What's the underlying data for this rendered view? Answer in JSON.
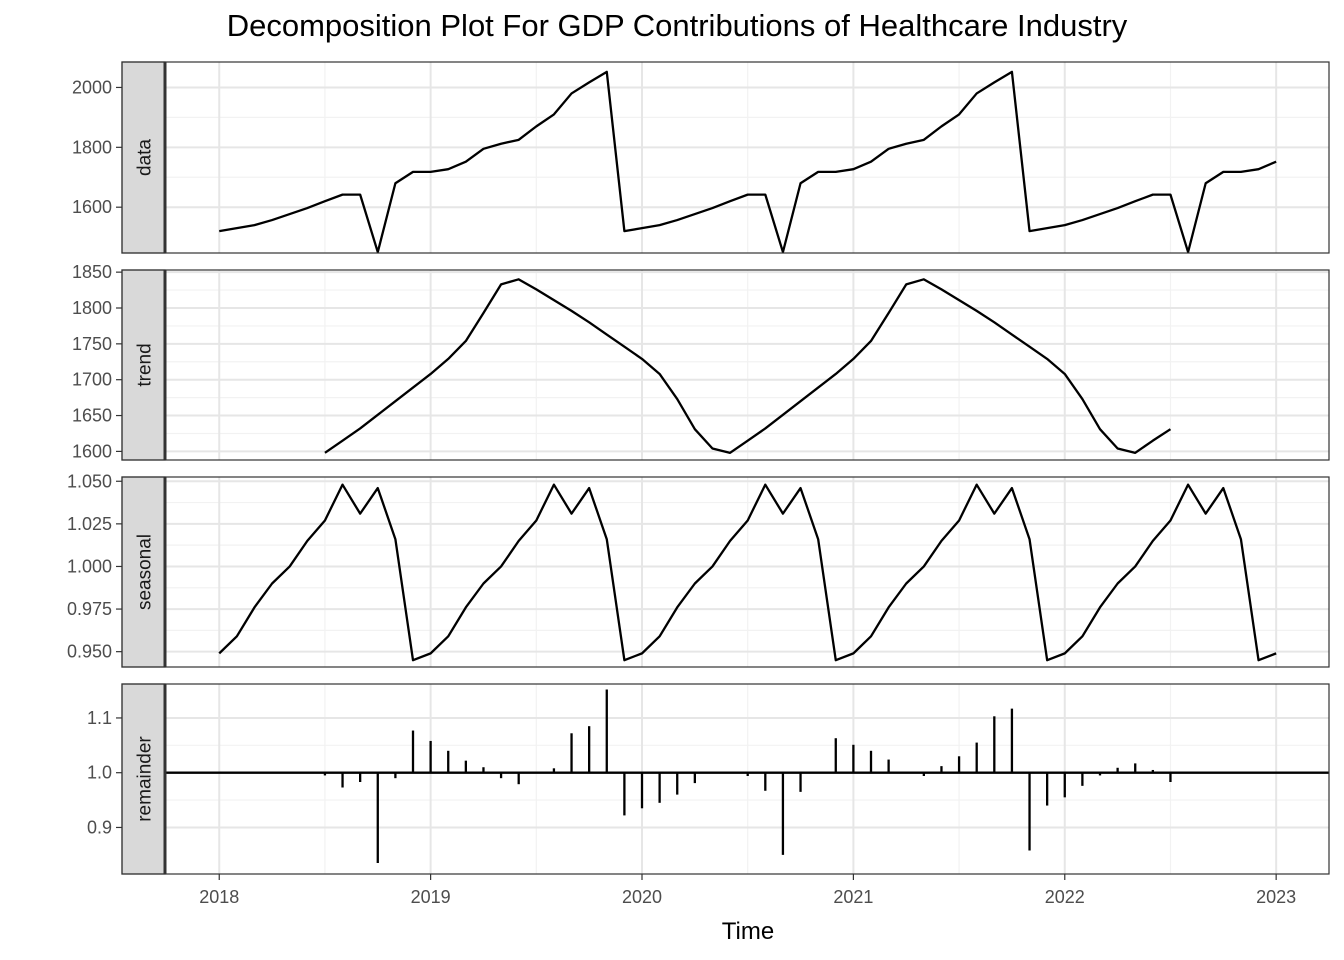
{
  "chart_data": {
    "type": "line",
    "title": "Decomposition Plot For GDP Contributions of Healthcare Industry",
    "xlabel": "Time",
    "x_ticks": [
      "2018",
      "2019",
      "2020",
      "2021",
      "2022",
      "2023"
    ],
    "xlim": [
      2017.54,
      2023.25
    ],
    "grid": true,
    "panels": [
      {
        "name": "data",
        "kind": "line",
        "ylim": [
          1447,
          2085
        ],
        "y_ticks": [
          1600,
          1800,
          2000
        ],
        "y_tick_labels": [
          "1600",
          "1800",
          "2000"
        ],
        "x_start": 2018.0,
        "x_step": 0.0833333,
        "values": [
          1520,
          1530,
          1540,
          1557,
          1577,
          1597,
          1620,
          1642,
          1642,
          1450,
          1680,
          1718,
          1718,
          1727,
          1752,
          1795,
          1812,
          1825,
          1870,
          1910,
          1980,
          2017,
          2052,
          1520,
          1530,
          1540,
          1557,
          1577,
          1597,
          1620,
          1642,
          1642,
          1450,
          1680,
          1718,
          1718,
          1727,
          1752,
          1795,
          1812,
          1825,
          1870,
          1910,
          1980,
          2017,
          2052,
          1520,
          1530,
          1540,
          1557,
          1577,
          1597,
          1620,
          1642,
          1642,
          1450,
          1680,
          1718,
          1718,
          1727,
          1752
        ]
      },
      {
        "name": "trend",
        "kind": "line",
        "ylim": [
          1588,
          1853
        ],
        "y_ticks": [
          1600,
          1650,
          1700,
          1750,
          1800,
          1850
        ],
        "y_tick_labels": [
          "1600",
          "1650",
          "1700",
          "1750",
          "1800",
          "1850"
        ],
        "x_start": 2018.5,
        "x_step": 0.0833333,
        "values": [
          1598,
          1615,
          1632,
          1651,
          1670,
          1689,
          1708,
          1729,
          1754,
          1793,
          1833,
          1840,
          1826,
          1811,
          1796,
          1780,
          1763,
          1746,
          1729,
          1708,
          1673,
          1631,
          1604,
          1598,
          1615,
          1632,
          1651,
          1670,
          1689,
          1708,
          1729,
          1754,
          1793,
          1833,
          1840,
          1826,
          1811,
          1796,
          1780,
          1763,
          1746,
          1729,
          1708,
          1673,
          1631,
          1604,
          1598,
          1615,
          1631
        ]
      },
      {
        "name": "seasonal",
        "kind": "line",
        "ylim": [
          0.941,
          1.0525
        ],
        "y_ticks": [
          0.95,
          0.975,
          1.0,
          1.025,
          1.05
        ],
        "y_tick_labels": [
          "0.950",
          "0.975",
          "1.000",
          "1.025",
          "1.050"
        ],
        "x_start": 2018.0,
        "x_step": 0.0833333,
        "values": [
          0.949,
          0.959,
          0.976,
          0.99,
          1.0,
          1.015,
          1.027,
          1.048,
          1.031,
          1.046,
          1.016,
          0.945,
          0.949,
          0.959,
          0.976,
          0.99,
          1.0,
          1.015,
          1.027,
          1.048,
          1.031,
          1.046,
          1.016,
          0.945,
          0.949,
          0.959,
          0.976,
          0.99,
          1.0,
          1.015,
          1.027,
          1.048,
          1.031,
          1.046,
          1.016,
          0.945,
          0.949,
          0.959,
          0.976,
          0.99,
          1.0,
          1.015,
          1.027,
          1.048,
          1.031,
          1.046,
          1.016,
          0.945,
          0.949,
          0.959,
          0.976,
          0.99,
          1.0,
          1.015,
          1.027,
          1.048,
          1.031,
          1.046,
          1.016,
          0.945,
          0.949
        ]
      },
      {
        "name": "remainder",
        "kind": "bar",
        "ylim": [
          0.815,
          1.162
        ],
        "y_ticks": [
          0.9,
          1.0,
          1.1
        ],
        "y_tick_labels": [
          "0.9",
          "1.0",
          "1.1"
        ],
        "baseline": 1.0,
        "x_start": 2018.5,
        "x_step": 0.0833333,
        "values": [
          0.995,
          0.973,
          0.983,
          0.835,
          0.99,
          1.077,
          1.058,
          1.04,
          1.022,
          1.01,
          0.99,
          0.979,
          1.0,
          1.008,
          1.072,
          1.085,
          1.152,
          0.922,
          0.935,
          0.945,
          0.96,
          0.981,
          1.0,
          1.0,
          0.994,
          0.967,
          0.85,
          0.965,
          1.0,
          1.063,
          1.051,
          1.04,
          1.024,
          1.0,
          0.994,
          1.012,
          1.03,
          1.055,
          1.103,
          1.117,
          0.858,
          0.94,
          0.955,
          0.976,
          0.995,
          1.009,
          1.017,
          1.005,
          0.983
        ]
      }
    ]
  }
}
